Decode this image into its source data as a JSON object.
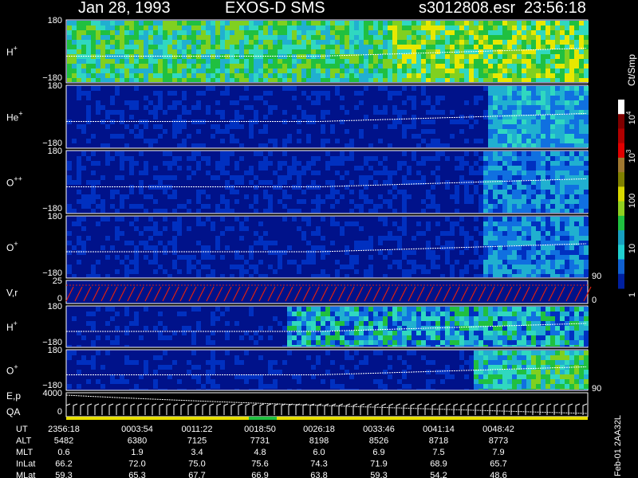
{
  "header": {
    "date": "Jan 28, 1993",
    "instrument": "EXOS-D SMS",
    "file": "s3012808.esr",
    "time": "23:56:18"
  },
  "panels": [
    {
      "label": "H",
      "sup": "+",
      "ticks": [
        "180",
        "−180"
      ]
    },
    {
      "label": "He",
      "sup": "+",
      "ticks": [
        "180",
        "−180"
      ]
    },
    {
      "label": "O",
      "sup": "++",
      "ticks": [
        "180",
        "−180"
      ]
    },
    {
      "label": "O",
      "sup": "+",
      "ticks": [
        "180",
        "−180"
      ]
    },
    {
      "label": "V,r",
      "ticks": [
        "25",
        "0"
      ],
      "right_ticks": [
        "90",
        "0"
      ]
    },
    {
      "label": "H",
      "sup": "+",
      "ticks": [
        "180",
        "−180"
      ]
    },
    {
      "label": "O",
      "sup": "+",
      "ticks": [
        "180",
        "−180"
      ]
    },
    {
      "label": "E,p",
      "label2": "QA",
      "ticks": [
        "4000",
        "0"
      ],
      "right_ticks": [
        "90"
      ]
    }
  ],
  "colorbar": {
    "unit": "Ct/Smp",
    "labels": [
      {
        "base": "10",
        "sup": "4"
      },
      {
        "base": "10",
        "sup": "3"
      },
      {
        "base": "100"
      },
      {
        "base": "10"
      },
      {
        "base": "1"
      }
    ]
  },
  "ephemeris": [
    {
      "name": "UT",
      "values": [
        "2356:18",
        "0003:54",
        "0011:22",
        "0018:50",
        "0026:18",
        "0033:46",
        "0041:14",
        "0048:42"
      ]
    },
    {
      "name": "ALT",
      "values": [
        "5482",
        "6380",
        "7125",
        "7731",
        "8198",
        "8526",
        "8718",
        "8773"
      ]
    },
    {
      "name": "MLT",
      "values": [
        "0.6",
        "1.9",
        "3.4",
        "4.8",
        "6.0",
        "6.9",
        "7.5",
        "7.9"
      ]
    },
    {
      "name": "InLat",
      "values": [
        "66.2",
        "72.0",
        "75.0",
        "75.6",
        "74.3",
        "71.9",
        "68.9",
        "65.7"
      ]
    },
    {
      "name": "MLat",
      "values": [
        "59.3",
        "65.3",
        "67.7",
        "66.9",
        "63.8",
        "59.3",
        "54.2",
        "48.6"
      ]
    }
  ],
  "footer": "Feb-01 2AA32L"
}
